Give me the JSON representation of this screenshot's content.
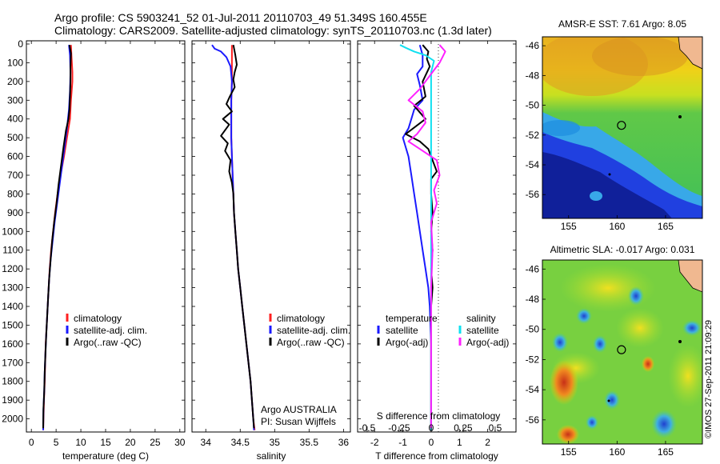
{
  "header": {
    "line1": "Argo profile: CS 5903241_52 01-Jul-2011 20110703_49 51.349S 160.455E",
    "line2": "Climatology: CARS2009. Satellite-adjusted climatology: synTS_20110703.nc (1.3d later)"
  },
  "colors": {
    "climatology": "#ff2020",
    "satellite": "#1a1aff",
    "argo": "#000000",
    "sal_satellite": "#10e0f0",
    "sal_argo": "#ff20ff"
  },
  "depth_axis": {
    "ticks": [
      0,
      100,
      200,
      300,
      400,
      500,
      600,
      700,
      800,
      900,
      1000,
      1100,
      1200,
      1300,
      1400,
      1500,
      1600,
      1700,
      1800,
      1900,
      2000
    ],
    "ylim": [
      0,
      2070
    ]
  },
  "chart_data": [
    {
      "type": "line",
      "id": "temperature",
      "xlabel": "temperature (deg C)",
      "xlim": [
        -1,
        31
      ],
      "xticks": [
        0,
        5,
        10,
        15,
        20,
        25,
        30
      ],
      "legend": [
        "climatology",
        "satellite-adj. clim.",
        "Argo(..raw -QC)"
      ],
      "series": [
        {
          "name": "climatology",
          "color_key": "climatology",
          "points": [
            [
              8.0,
              5
            ],
            [
              8.1,
              60
            ],
            [
              8.3,
              150
            ],
            [
              8.3,
              200
            ],
            [
              8.0,
              300
            ],
            [
              7.8,
              400
            ],
            [
              7.2,
              500
            ],
            [
              6.6,
              600
            ],
            [
              5.9,
              700
            ],
            [
              5.3,
              800
            ],
            [
              4.8,
              900
            ],
            [
              4.4,
              1000
            ],
            [
              4.0,
              1100
            ],
            [
              3.7,
              1200
            ],
            [
              3.5,
              1300
            ],
            [
              3.3,
              1400
            ],
            [
              3.1,
              1500
            ],
            [
              2.9,
              1600
            ],
            [
              2.8,
              1700
            ],
            [
              2.7,
              1800
            ],
            [
              2.55,
              1900
            ],
            [
              2.45,
              2000
            ],
            [
              2.4,
              2060
            ]
          ]
        },
        {
          "name": "satellite-adj. clim.",
          "color_key": "satellite",
          "points": [
            [
              7.6,
              5
            ],
            [
              7.8,
              60
            ],
            [
              7.9,
              150
            ],
            [
              7.8,
              250
            ],
            [
              7.6,
              350
            ],
            [
              7.2,
              450
            ],
            [
              6.7,
              550
            ],
            [
              6.2,
              650
            ],
            [
              5.7,
              750
            ],
            [
              5.2,
              850
            ],
            [
              4.7,
              950
            ],
            [
              4.3,
              1050
            ],
            [
              3.9,
              1150
            ],
            [
              3.6,
              1250
            ],
            [
              3.4,
              1350
            ],
            [
              3.2,
              1450
            ],
            [
              3.0,
              1550
            ],
            [
              2.85,
              1650
            ],
            [
              2.7,
              1750
            ],
            [
              2.6,
              1850
            ],
            [
              2.45,
              1950
            ],
            [
              2.4,
              2060
            ]
          ]
        },
        {
          "name": "Argo(..raw -QC)",
          "color_key": "argo",
          "points": [
            [
              7.7,
              5
            ],
            [
              8.0,
              50
            ],
            [
              7.9,
              120
            ],
            [
              7.9,
              200
            ],
            [
              7.8,
              280
            ],
            [
              7.7,
              350
            ],
            [
              7.5,
              400
            ],
            [
              7.0,
              460
            ],
            [
              6.5,
              550
            ],
            [
              6.0,
              650
            ],
            [
              5.5,
              750
            ],
            [
              5.1,
              850
            ],
            [
              4.6,
              950
            ],
            [
              4.2,
              1050
            ],
            [
              3.9,
              1150
            ],
            [
              3.6,
              1250
            ],
            [
              3.4,
              1350
            ],
            [
              3.2,
              1450
            ],
            [
              3.0,
              1550
            ],
            [
              2.85,
              1650
            ],
            [
              2.7,
              1750
            ],
            [
              2.6,
              1850
            ],
            [
              2.45,
              1950
            ],
            [
              2.4,
              2050
            ]
          ]
        }
      ]
    },
    {
      "type": "line",
      "id": "salinity",
      "xlabel": "salinity",
      "xlim": [
        33.8,
        36.1
      ],
      "xticks": [
        34,
        34.5,
        35,
        35.5,
        36
      ],
      "legend": [
        "climatology",
        "satellite-adj. clim.",
        "Argo(..raw -QC)"
      ],
      "annotation": [
        "Argo AUSTRALIA",
        "PI: Susan Wijffels"
      ],
      "series": [
        {
          "name": "climatology",
          "color_key": "climatology",
          "points": [
            [
              34.38,
              5
            ],
            [
              34.38,
              100
            ],
            [
              34.38,
              200
            ],
            [
              34.37,
              300
            ],
            [
              34.37,
              400
            ],
            [
              34.37,
              500
            ],
            [
              34.38,
              600
            ],
            [
              34.39,
              700
            ],
            [
              34.4,
              800
            ],
            [
              34.41,
              900
            ],
            [
              34.43,
              1000
            ],
            [
              34.45,
              1100
            ],
            [
              34.47,
              1200
            ],
            [
              34.5,
              1300
            ],
            [
              34.53,
              1400
            ],
            [
              34.56,
              1500
            ],
            [
              34.59,
              1600
            ],
            [
              34.62,
              1700
            ],
            [
              34.65,
              1800
            ],
            [
              34.67,
              1900
            ],
            [
              34.69,
              2000
            ],
            [
              34.71,
              2060
            ]
          ]
        },
        {
          "name": "satellite-adj. clim.",
          "color_key": "satellite",
          "points": [
            [
              34.09,
              5
            ],
            [
              34.13,
              25
            ],
            [
              34.22,
              40
            ],
            [
              34.3,
              70
            ],
            [
              34.36,
              120
            ],
            [
              34.38,
              200
            ],
            [
              34.37,
              300
            ],
            [
              34.37,
              400
            ],
            [
              34.37,
              500
            ],
            [
              34.38,
              600
            ],
            [
              34.39,
              700
            ],
            [
              34.4,
              800
            ],
            [
              34.41,
              900
            ],
            [
              34.43,
              1000
            ],
            [
              34.45,
              1100
            ],
            [
              34.47,
              1200
            ],
            [
              34.5,
              1300
            ],
            [
              34.53,
              1400
            ],
            [
              34.56,
              1500
            ],
            [
              34.59,
              1600
            ],
            [
              34.62,
              1700
            ],
            [
              34.65,
              1800
            ],
            [
              34.67,
              1900
            ],
            [
              34.69,
              2000
            ],
            [
              34.7,
              2060
            ]
          ]
        },
        {
          "name": "Argo(..raw -QC)",
          "color_key": "argo",
          "points": [
            [
              34.4,
              5
            ],
            [
              34.43,
              60
            ],
            [
              34.45,
              110
            ],
            [
              34.42,
              150
            ],
            [
              34.4,
              190
            ],
            [
              34.42,
              230
            ],
            [
              34.35,
              280
            ],
            [
              34.3,
              320
            ],
            [
              34.38,
              360
            ],
            [
              34.25,
              400
            ],
            [
              34.34,
              430
            ],
            [
              34.28,
              460
            ],
            [
              34.22,
              490
            ],
            [
              34.32,
              530
            ],
            [
              34.28,
              570
            ],
            [
              34.36,
              620
            ],
            [
              34.34,
              680
            ],
            [
              34.38,
              740
            ],
            [
              34.4,
              800
            ],
            [
              34.41,
              900
            ],
            [
              34.43,
              1000
            ],
            [
              34.45,
              1100
            ],
            [
              34.47,
              1200
            ],
            [
              34.5,
              1300
            ],
            [
              34.53,
              1400
            ],
            [
              34.56,
              1500
            ],
            [
              34.59,
              1600
            ],
            [
              34.62,
              1700
            ],
            [
              34.65,
              1800
            ],
            [
              34.67,
              1900
            ],
            [
              34.69,
              2000
            ],
            [
              34.7,
              2050
            ]
          ]
        }
      ]
    },
    {
      "type": "line",
      "id": "differences",
      "xlabel": "T difference from climatology",
      "xlim": [
        -2.6,
        3.0
      ],
      "xticks": [
        -2,
        -1,
        0,
        1,
        2
      ],
      "top_label": "S difference from climatology",
      "top_ticks": [
        "-0.5",
        "-0.25",
        "0",
        "0.25",
        "0.5"
      ],
      "top_tick_values": [
        -0.5,
        -0.25,
        0,
        0.25,
        0.5
      ],
      "legend_headers": [
        "temperature",
        "salinity"
      ],
      "legend_temperature": [
        "satellite",
        "Argo(-adj)"
      ],
      "legend_salinity": [
        "satellite",
        "Argo(-adj)"
      ],
      "series": [
        {
          "name": "temperature satellite",
          "color_key": "satellite",
          "points": [
            [
              -0.4,
              5
            ],
            [
              -0.3,
              60
            ],
            [
              -0.3,
              120
            ],
            [
              -0.5,
              160
            ],
            [
              -0.4,
              220
            ],
            [
              -0.3,
              300
            ],
            [
              -0.6,
              350
            ],
            [
              -0.7,
              400
            ],
            [
              -0.8,
              450
            ],
            [
              -1.0,
              500
            ],
            [
              -0.8,
              600
            ],
            [
              -0.7,
              700
            ],
            [
              -0.6,
              800
            ],
            [
              -0.5,
              900
            ],
            [
              -0.4,
              1000
            ],
            [
              -0.3,
              1100
            ],
            [
              -0.2,
              1200
            ],
            [
              -0.1,
              1300
            ],
            [
              -0.05,
              1400
            ],
            [
              0,
              1600
            ],
            [
              0,
              2060
            ]
          ]
        },
        {
          "name": "temperature Argo(-adj)",
          "color_key": "argo",
          "points": [
            [
              -0.3,
              5
            ],
            [
              -0.1,
              40
            ],
            [
              -0.15,
              80
            ],
            [
              -0.05,
              120
            ],
            [
              -0.3,
              200
            ],
            [
              -0.2,
              280
            ],
            [
              -0.6,
              330
            ],
            [
              -0.2,
              400
            ],
            [
              -0.9,
              480
            ],
            [
              -0.4,
              520
            ],
            [
              -0.1,
              560
            ],
            [
              0,
              600
            ],
            [
              0.2,
              680
            ],
            [
              0,
              720
            ],
            [
              0,
              800
            ],
            [
              0.05,
              900
            ],
            [
              0,
              1000
            ],
            [
              0.05,
              1100
            ],
            [
              0,
              1200
            ],
            [
              0.05,
              1300
            ],
            [
              0,
              1400
            ],
            [
              0,
              1500
            ],
            [
              0,
              2050
            ]
          ]
        },
        {
          "name": "salinity satellite",
          "color_key": "sal_satellite",
          "points": [
            [
              -1.1,
              5
            ],
            [
              -0.9,
              20
            ],
            [
              -0.6,
              40
            ],
            [
              -0.2,
              60
            ],
            [
              0.1,
              90
            ],
            [
              0,
              150
            ],
            [
              0,
              250
            ],
            [
              0,
              400
            ],
            [
              0,
              600
            ],
            [
              0,
              800
            ],
            [
              0,
              1000
            ],
            [
              0,
              2060
            ]
          ]
        },
        {
          "name": "salinity Argo(-adj)",
          "color_key": "sal_argo",
          "points": [
            [
              0.3,
              5
            ],
            [
              0.5,
              40
            ],
            [
              0.4,
              70
            ],
            [
              0.3,
              100
            ],
            [
              -0.4,
              240
            ],
            [
              -0.8,
              300
            ],
            [
              -0.3,
              360
            ],
            [
              -0.2,
              420
            ],
            [
              -0.5,
              480
            ],
            [
              -0.8,
              520
            ],
            [
              -0.4,
              560
            ],
            [
              0.2,
              620
            ],
            [
              0.3,
              700
            ],
            [
              0.1,
              780
            ],
            [
              0.2,
              850
            ],
            [
              0,
              950
            ],
            [
              0.05,
              1100
            ],
            [
              0,
              1300
            ],
            [
              0,
              1500
            ],
            [
              0,
              2050
            ]
          ]
        }
      ]
    },
    {
      "type": "heatmap",
      "id": "sst_map",
      "title": "AMSR-E SST: 7.61 Argo: 8.05",
      "xlim": [
        152.3,
        168.8
      ],
      "ylim": [
        -57.6,
        -45.4
      ],
      "xticks": [
        155,
        160,
        165
      ],
      "yticks": [
        -46,
        -48,
        -50,
        -52,
        -54,
        -56
      ],
      "argo_position": {
        "lon": 160.455,
        "lat": -51.349
      }
    },
    {
      "type": "heatmap",
      "id": "sla_map",
      "title": "Altimetric SLA: -0.017 Argo: 0.031",
      "xlim": [
        152.3,
        168.8
      ],
      "ylim": [
        -57.6,
        -45.4
      ],
      "xticks": [
        155,
        160,
        165
      ],
      "yticks": [
        -46,
        -48,
        -50,
        -52,
        -54,
        -56
      ],
      "argo_position": {
        "lon": 160.455,
        "lat": -51.349
      }
    }
  ],
  "credit": "©IMOS 27-Sep-2011 21:09:29"
}
